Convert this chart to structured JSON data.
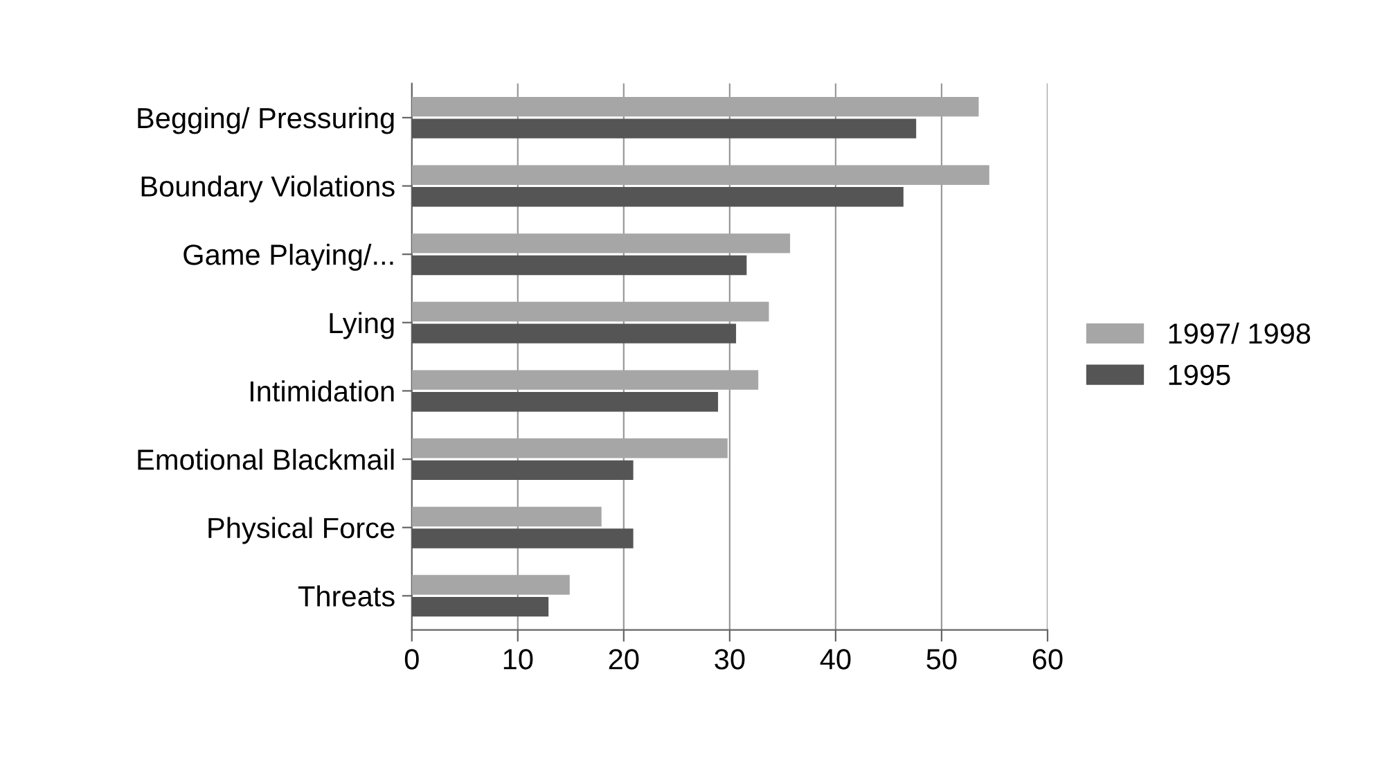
{
  "chart_data": {
    "type": "bar",
    "orientation": "horizontal",
    "categories": [
      "Begging/ Pressuring",
      "Boundary Violations",
      "Game Playing/...",
      "Lying",
      "Intimidation",
      "Emotional Blackmail",
      "Physical Force",
      "Threats"
    ],
    "series": [
      {
        "name": "1997/ 1998",
        "color": "#a6a6a6",
        "values": [
          53.5,
          54.5,
          35.7,
          33.7,
          32.7,
          29.8,
          17.9,
          14.9
        ]
      },
      {
        "name": "1995",
        "color": "#555555",
        "values": [
          47.6,
          46.4,
          31.6,
          30.6,
          28.9,
          20.9,
          20.9,
          12.9
        ]
      }
    ],
    "xlim": [
      0,
      60
    ],
    "xticks": [
      0,
      10,
      20,
      30,
      40,
      50,
      60
    ],
    "grid": "x",
    "legend": "right"
  }
}
